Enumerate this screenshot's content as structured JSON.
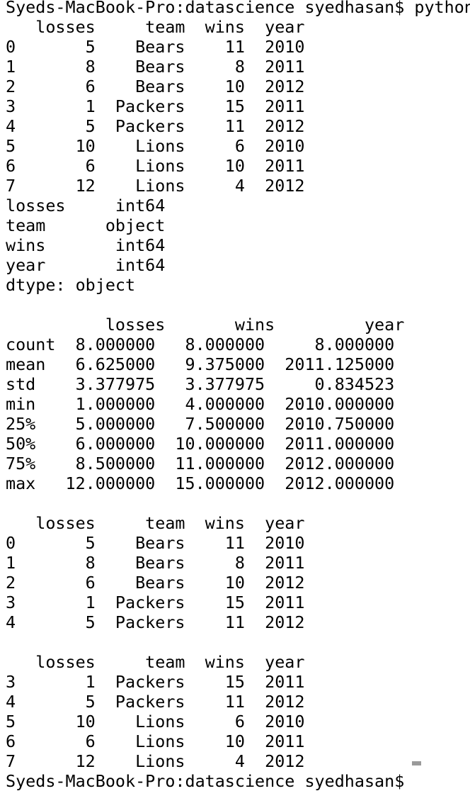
{
  "terminal": {
    "lines": [
      "Syeds-MacBook-Pro:datascience syedhasan$ python",
      "   losses     team  wins  year",
      "0       5    Bears    11  2010",
      "1       8    Bears     8  2011",
      "2       6    Bears    10  2012",
      "3       1  Packers    15  2011",
      "4       5  Packers    11  2012",
      "5      10    Lions     6  2010",
      "6       6    Lions    10  2011",
      "7      12    Lions     4  2012",
      "losses     int64",
      "team      object",
      "wins       int64",
      "year       int64",
      "dtype: object",
      "",
      "          losses       wins         year",
      "count  8.000000   8.000000     8.000000",
      "mean   6.625000   9.375000  2011.125000",
      "std    3.377975   3.377975     0.834523",
      "min    1.000000   4.000000  2010.000000",
      "25%    5.000000   7.500000  2010.750000",
      "50%    6.000000  10.000000  2011.000000",
      "75%    8.500000  11.000000  2012.000000",
      "max   12.000000  15.000000  2012.000000",
      "",
      "   losses     team  wins  year",
      "0       5    Bears    11  2010",
      "1       8    Bears     8  2011",
      "2       6    Bears    10  2012",
      "3       1  Packers    15  2011",
      "4       5  Packers    11  2012",
      "",
      "   losses     team  wins  year",
      "3       1  Packers    15  2011",
      "4       5  Packers    11  2012",
      "5      10    Lions     6  2010",
      "6       6    Lions    10  2011",
      "7      12    Lions     4  2012",
      "Syeds-MacBook-Pro:datascience syedhasan$"
    ]
  }
}
